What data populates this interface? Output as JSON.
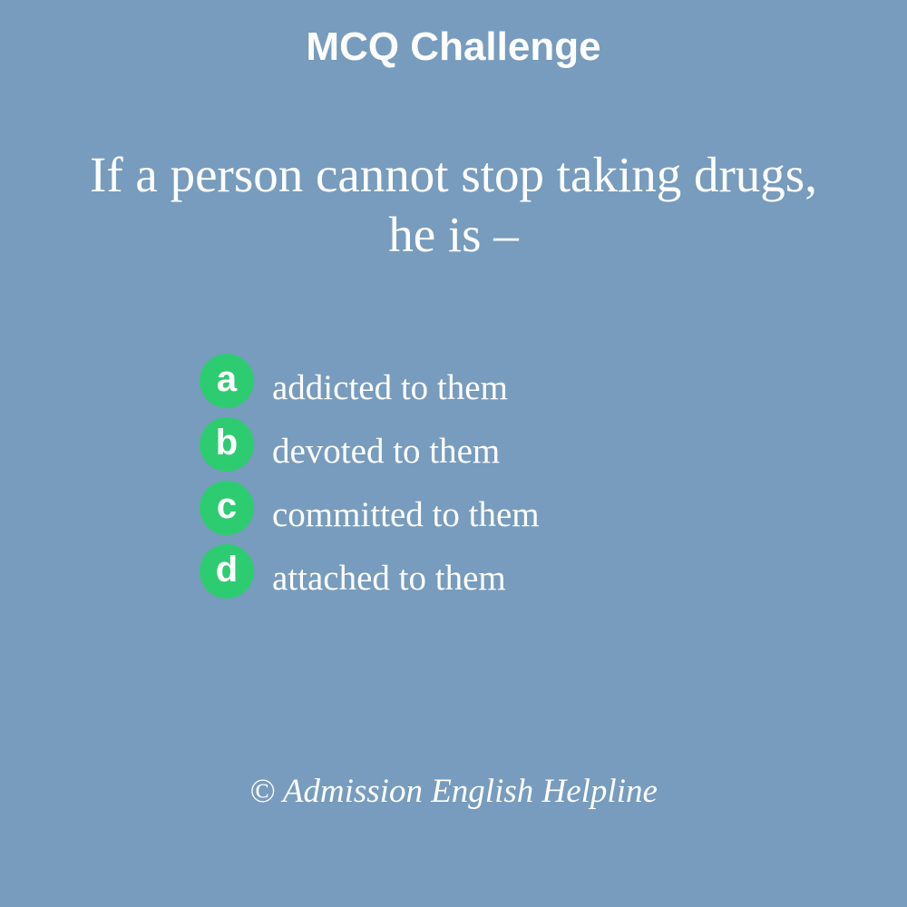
{
  "header": {
    "title": "MCQ Challenge"
  },
  "question": {
    "line1": "If a person cannot stop taking drugs,",
    "line2": "he is –"
  },
  "options": [
    {
      "letter": "a",
      "text": "addicted to them"
    },
    {
      "letter": "b",
      "text": "devoted to them"
    },
    {
      "letter": "c",
      "text": "committed to them"
    },
    {
      "letter": "d",
      "text": "attached to them"
    }
  ],
  "footer": {
    "copyright": "© Admission English Helpline"
  },
  "colors": {
    "background": "#779cbd",
    "badge": "#2ecc71",
    "text": "#ffffff"
  }
}
